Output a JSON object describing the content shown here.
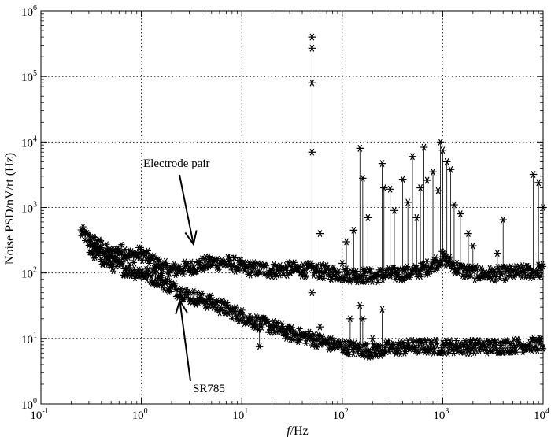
{
  "chart_data": {
    "type": "line",
    "title": "",
    "xlabel": {
      "italic": "f",
      "rest": "/Hz"
    },
    "ylabel": "Noise PSD/nV/rt (Hz)",
    "xscale": "log",
    "yscale": "log",
    "xlim": [
      0.1,
      10000
    ],
    "ylim": [
      1,
      1000000
    ],
    "grid": true,
    "x_ticks": [
      {
        "value": 0.1,
        "base": "10",
        "exp": "-1"
      },
      {
        "value": 1,
        "base": "10",
        "exp": "0"
      },
      {
        "value": 10,
        "base": "10",
        "exp": "1"
      },
      {
        "value": 100,
        "base": "10",
        "exp": "2"
      },
      {
        "value": 1000,
        "base": "10",
        "exp": "3"
      },
      {
        "value": 10000,
        "base": "10",
        "exp": "4"
      }
    ],
    "y_ticks": [
      {
        "value": 1,
        "base": "10",
        "exp": "0"
      },
      {
        "value": 10,
        "base": "10",
        "exp": "1"
      },
      {
        "value": 100,
        "base": "10",
        "exp": "2"
      },
      {
        "value": 1000,
        "base": "10",
        "exp": "3"
      },
      {
        "value": 10000,
        "base": "10",
        "exp": "4"
      },
      {
        "value": 100000,
        "base": "10",
        "exp": "5"
      },
      {
        "value": 1000000,
        "base": "10",
        "exp": "6"
      }
    ],
    "marker": "asterisk",
    "series": [
      {
        "name": "Electrode pair",
        "baseline": [
          [
            0.25,
            420
          ],
          [
            0.3,
            330
          ],
          [
            0.4,
            250
          ],
          [
            0.5,
            190
          ],
          [
            0.6,
            220
          ],
          [
            0.7,
            210
          ],
          [
            0.8,
            180
          ],
          [
            1.0,
            200
          ],
          [
            1.3,
            150
          ],
          [
            1.7,
            120
          ],
          [
            2.0,
            110
          ],
          [
            3.0,
            120
          ],
          [
            5.0,
            145
          ],
          [
            8.0,
            140
          ],
          [
            10,
            120
          ],
          [
            20,
            110
          ],
          [
            30,
            115
          ],
          [
            50,
            110
          ],
          [
            80,
            100
          ],
          [
            100,
            95
          ],
          [
            200,
            90
          ],
          [
            300,
            95
          ],
          [
            500,
            100
          ],
          [
            700,
            120
          ],
          [
            1000,
            170
          ],
          [
            1500,
            110
          ],
          [
            2000,
            100
          ],
          [
            3000,
            95
          ],
          [
            5000,
            100
          ],
          [
            8000,
            105
          ],
          [
            10000,
            110
          ]
        ],
        "spikes": [
          [
            50,
            400000
          ],
          [
            50,
            270000
          ],
          [
            50,
            80000
          ],
          [
            50,
            7000
          ],
          [
            60,
            400
          ],
          [
            100,
            140
          ],
          [
            110,
            300
          ],
          [
            130,
            450
          ],
          [
            150,
            8000
          ],
          [
            160,
            2800
          ],
          [
            180,
            700
          ],
          [
            250,
            4700
          ],
          [
            260,
            2000
          ],
          [
            300,
            1900
          ],
          [
            330,
            900
          ],
          [
            400,
            2700
          ],
          [
            450,
            1200
          ],
          [
            500,
            6000
          ],
          [
            550,
            700
          ],
          [
            600,
            2000
          ],
          [
            650,
            8300
          ],
          [
            700,
            2600
          ],
          [
            800,
            3500
          ],
          [
            900,
            1800
          ],
          [
            950,
            10000
          ],
          [
            1000,
            7500
          ],
          [
            1100,
            5000
          ],
          [
            1200,
            3800
          ],
          [
            1300,
            1100
          ],
          [
            1500,
            800
          ],
          [
            1800,
            400
          ],
          [
            2000,
            260
          ],
          [
            3500,
            200
          ],
          [
            4000,
            650
          ],
          [
            8000,
            3200
          ],
          [
            9000,
            2400
          ],
          [
            10000,
            1000
          ]
        ]
      },
      {
        "name": "SR785",
        "baseline": [
          [
            0.3,
            230
          ],
          [
            0.4,
            170
          ],
          [
            0.5,
            140
          ],
          [
            0.7,
            115
          ],
          [
            1.0,
            100
          ],
          [
            1.5,
            80
          ],
          [
            2.0,
            60
          ],
          [
            3.0,
            45
          ],
          [
            5.0,
            35
          ],
          [
            7.0,
            28
          ],
          [
            10,
            22
          ],
          [
            15,
            17
          ],
          [
            20,
            15
          ],
          [
            30,
            12
          ],
          [
            50,
            10
          ],
          [
            70,
            8.5
          ],
          [
            100,
            7.5
          ],
          [
            150,
            6.8
          ],
          [
            200,
            6.5
          ],
          [
            300,
            7.0
          ],
          [
            500,
            7.5
          ],
          [
            700,
            7.5
          ],
          [
            1000,
            7.5
          ],
          [
            2000,
            7.5
          ],
          [
            3000,
            7.5
          ],
          [
            5000,
            7.8
          ],
          [
            7000,
            8.0
          ],
          [
            10000,
            8.3
          ]
        ],
        "spikes": [
          [
            15,
            7.5
          ],
          [
            50,
            50
          ],
          [
            60,
            15
          ],
          [
            120,
            20
          ],
          [
            150,
            32
          ],
          [
            160,
            20
          ],
          [
            200,
            10
          ],
          [
            250,
            28
          ]
        ]
      }
    ],
    "annotations": [
      {
        "text": "Electrode pair",
        "target_x": 3.3,
        "target_y": 120,
        "target": "Electrode pair"
      },
      {
        "text": "SR785",
        "target_x": 2.5,
        "target_y": 50,
        "target": "SR785"
      }
    ]
  }
}
